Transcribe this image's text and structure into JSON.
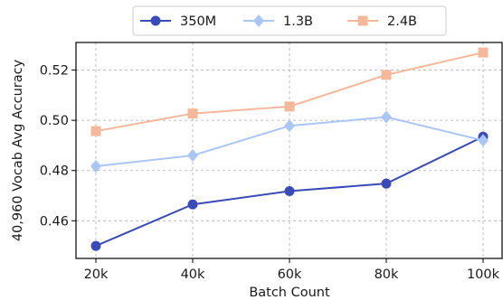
{
  "chart_data": {
    "type": "line",
    "title": "",
    "xlabel": "Batch Count",
    "ylabel": "40,960 Vocab Avg Accuracy",
    "categories": [
      "20k",
      "40k",
      "60k",
      "80k",
      "100k"
    ],
    "yticks": [
      "0.46",
      "0.48",
      "0.50",
      "0.52"
    ],
    "ylim": [
      0.445,
      0.531
    ],
    "grid": true,
    "legend_position": "top-center",
    "series": [
      {
        "name": "350M",
        "marker": "circle",
        "color": "#3a4bb8",
        "values": [
          0.45,
          0.4665,
          0.4718,
          0.4748,
          0.4935
        ]
      },
      {
        "name": "1.3B",
        "marker": "diamond",
        "color": "#aac6f5",
        "values": [
          0.4817,
          0.486,
          0.4978,
          0.5013,
          0.492
        ]
      },
      {
        "name": "2.4B",
        "marker": "square",
        "color": "#f5b89a",
        "values": [
          0.4957,
          0.5027,
          0.5055,
          0.5181,
          0.527
        ]
      }
    ]
  }
}
